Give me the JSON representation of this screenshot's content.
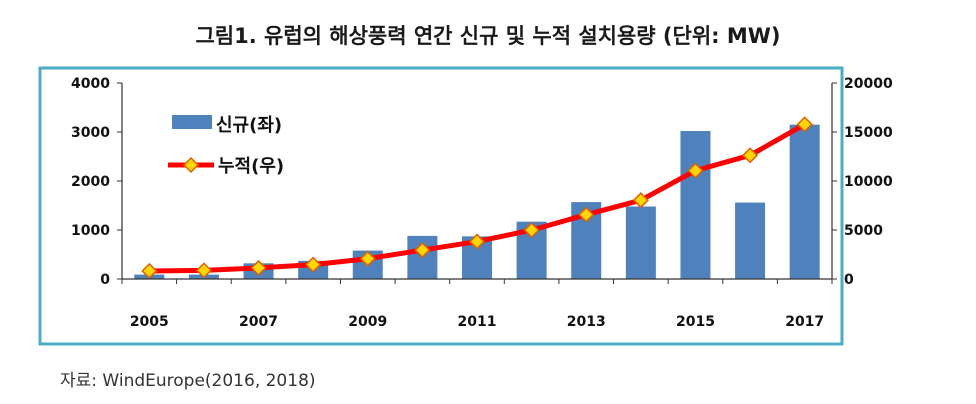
{
  "title": "그림1. 유럽의 해상풍력 연간 신규 및 누적 설치용량 (단위: MW)",
  "source": "자료: WindEurope(2016, 2018)",
  "colors": {
    "frame": "#4bacc6",
    "bar": "#4f81bd",
    "line": "#ff0000",
    "marker_fill": "#ffd700",
    "marker_stroke": "#e06000"
  },
  "chart_data": {
    "type": "bar+line",
    "categories": [
      "2005",
      "2006",
      "2007",
      "2008",
      "2009",
      "2010",
      "2011",
      "2012",
      "2013",
      "2014",
      "2015",
      "2016",
      "2017"
    ],
    "x_tick_labels": [
      "2005",
      "2007",
      "2009",
      "2011",
      "2013",
      "2015",
      "2017"
    ],
    "series": [
      {
        "name": "신규(좌)",
        "type": "bar",
        "axis": "left",
        "values": [
          90,
          90,
          320,
          370,
          580,
          880,
          870,
          1170,
          1570,
          1480,
          3020,
          1560,
          3150
        ]
      },
      {
        "name": "누적(우)",
        "type": "line",
        "axis": "right",
        "values": [
          820,
          880,
          1130,
          1470,
          2070,
          2950,
          3820,
          4990,
          6560,
          8040,
          11060,
          12620,
          15780
        ]
      }
    ],
    "y_left": {
      "ylim": [
        0,
        4000
      ],
      "ticks": [
        "0",
        "1000",
        "2000",
        "3000",
        "4000"
      ]
    },
    "y_right": {
      "ylim": [
        0,
        20000
      ],
      "ticks": [
        "0",
        "5000",
        "10000",
        "15000",
        "20000"
      ]
    },
    "legend": {
      "position": "top-left",
      "bar_label": "신규(좌)",
      "line_label": "누적(우)"
    }
  }
}
